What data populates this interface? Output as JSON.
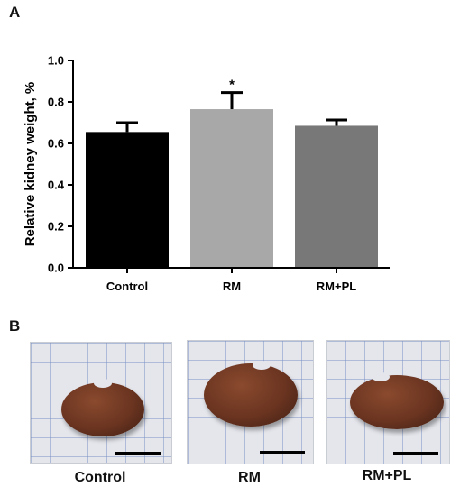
{
  "panel_a": {
    "letter": "A"
  },
  "panel_b": {
    "letter": "B",
    "photos": [
      {
        "label": "Control"
      },
      {
        "label": "RM"
      },
      {
        "label": "RM+PL"
      }
    ]
  },
  "chart_data": {
    "type": "bar",
    "categories": [
      "Control",
      "RM",
      "RM+PL"
    ],
    "values": [
      0.655,
      0.765,
      0.685
    ],
    "errors": [
      0.045,
      0.08,
      0.028
    ],
    "annotations": [
      "",
      "*",
      ""
    ],
    "colors": [
      "#000000",
      "#a8a8a8",
      "#787878"
    ],
    "title": "",
    "xlabel": "",
    "ylabel": "Relative kidney weight, %",
    "ylim": [
      0,
      1.0
    ],
    "yticks": [
      0.0,
      0.2,
      0.4,
      0.6,
      0.8,
      1.0
    ],
    "ytick_labels": [
      "0.0",
      "0.2",
      "0.4",
      "0.6",
      "0.8",
      "1.0"
    ],
    "grid": false,
    "legend": "none"
  }
}
